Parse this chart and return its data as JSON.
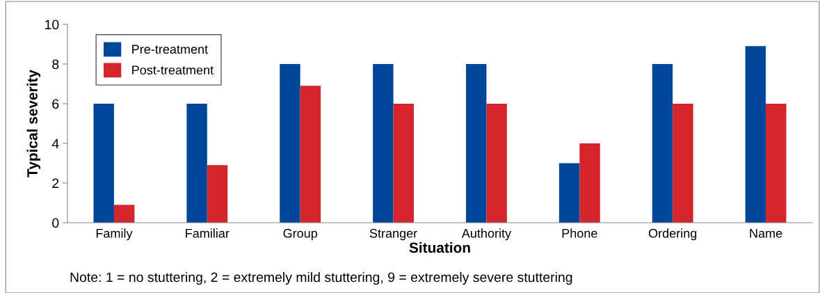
{
  "chart_data": {
    "type": "bar",
    "categories": [
      "Family",
      "Familiar",
      "Group",
      "Stranger",
      "Authority",
      "Phone",
      "Ordering",
      "Name"
    ],
    "series": [
      {
        "name": "Pre-treatment",
        "color": "#00479a",
        "values": [
          6,
          6,
          8,
          8,
          8,
          3,
          8,
          8.9
        ]
      },
      {
        "name": "Post-treatment",
        "color": "#d4252c",
        "values": [
          0.9,
          2.9,
          6.9,
          6,
          6,
          4,
          6,
          6
        ]
      }
    ],
    "xlabel": "Situation",
    "ylabel": "Typical severity",
    "ylim": [
      0,
      10
    ],
    "yticks": [
      0,
      2,
      4,
      6,
      8,
      10
    ],
    "grid": false,
    "legend": "top left",
    "annotations": [
      "Note: 1 = no stuttering, 2 = extremely mild stuttering, 9 = extremely severe stuttering"
    ]
  }
}
